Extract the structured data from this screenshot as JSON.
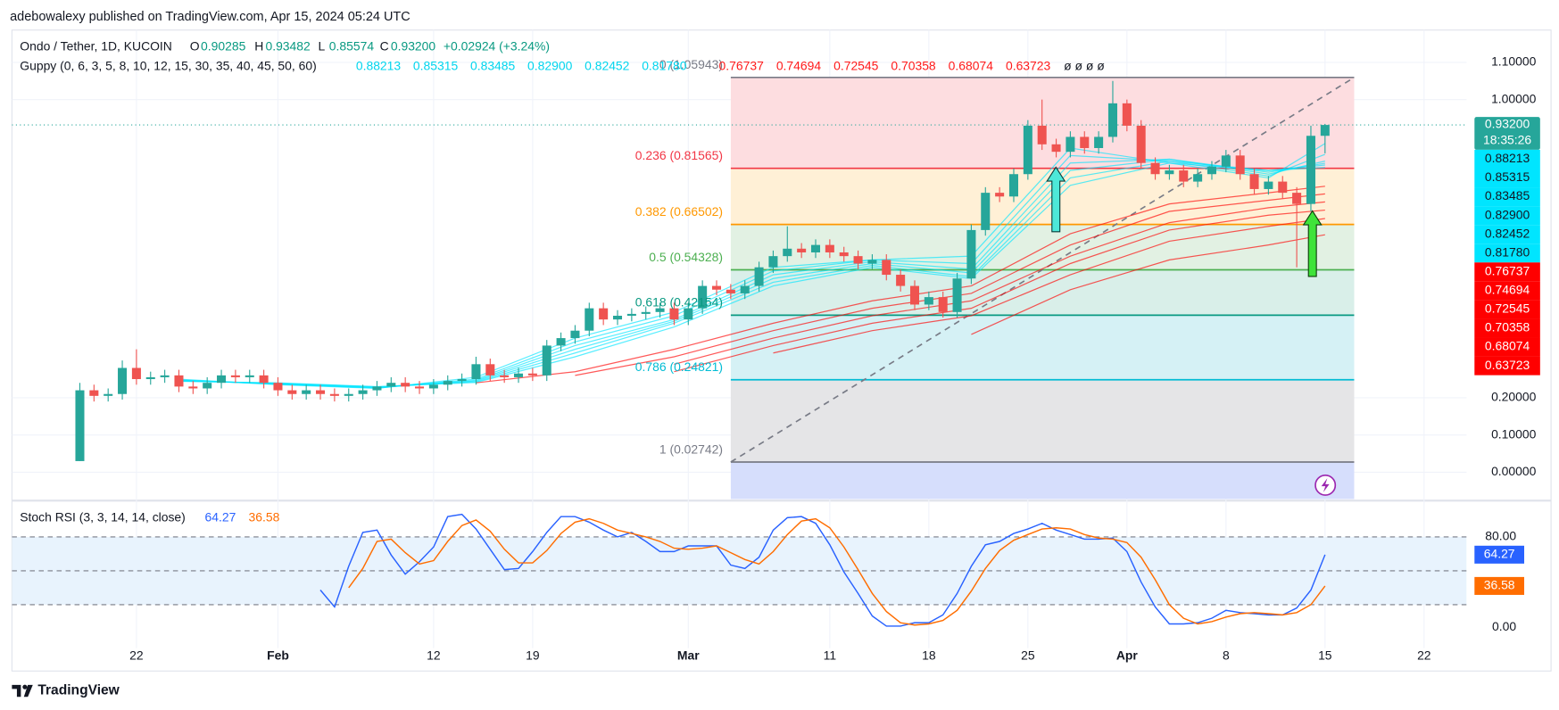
{
  "header": {
    "attribution": "adebowalexy published on TradingView.com, Apr 15, 2024 05:24 UTC",
    "logo": "TradingView"
  },
  "chart_data": [
    {
      "type": "candlestick",
      "title": "Ondo / Tether, 1D, KUCOIN",
      "ohlc_keys": [
        "O",
        "H",
        "L",
        "C"
      ],
      "change": "+0.02924 (+3.24%)",
      "last_price": {
        "value": 0.932,
        "label": "0.93200"
      },
      "countdown": "18:35:26",
      "up_color": "#26a69a",
      "down_color": "#ef5350",
      "open": [
        0.03,
        0.22,
        0.205,
        0.21,
        0.28,
        0.25,
        0.255,
        0.26,
        0.23,
        0.225,
        0.24,
        0.26,
        0.255,
        0.26,
        0.24,
        0.22,
        0.21,
        0.22,
        0.21,
        0.205,
        0.21,
        0.22,
        0.23,
        0.24,
        0.23,
        0.225,
        0.235,
        0.245,
        0.25,
        0.29,
        0.26,
        0.255,
        0.265,
        0.26,
        0.34,
        0.36,
        0.38,
        0.44,
        0.41,
        0.42,
        0.425,
        0.43,
        0.44,
        0.41,
        0.44,
        0.5,
        0.49,
        0.48,
        0.5,
        0.55,
        0.58,
        0.6,
        0.59,
        0.61,
        0.59,
        0.58,
        0.56,
        0.57,
        0.53,
        0.5,
        0.45,
        0.47,
        0.43,
        0.52,
        0.65,
        0.75,
        0.74,
        0.8,
        0.93,
        0.88,
        0.86,
        0.9,
        0.87,
        0.9,
        0.99,
        0.93,
        0.83,
        0.8,
        0.81,
        0.78,
        0.8,
        0.82,
        0.85,
        0.8,
        0.76,
        0.78,
        0.75,
        0.72,
        0.90285
      ],
      "high": [
        0.24,
        0.235,
        0.225,
        0.3,
        0.33,
        0.27,
        0.275,
        0.275,
        0.245,
        0.255,
        0.275,
        0.275,
        0.275,
        0.275,
        0.255,
        0.235,
        0.235,
        0.235,
        0.225,
        0.225,
        0.235,
        0.245,
        0.255,
        0.255,
        0.245,
        0.25,
        0.26,
        0.265,
        0.31,
        0.305,
        0.275,
        0.28,
        0.28,
        0.355,
        0.375,
        0.395,
        0.455,
        0.455,
        0.435,
        0.44,
        0.445,
        0.455,
        0.455,
        0.455,
        0.515,
        0.515,
        0.505,
        0.515,
        0.565,
        0.595,
        0.66,
        0.615,
        0.625,
        0.625,
        0.605,
        0.595,
        0.585,
        0.585,
        0.545,
        0.515,
        0.485,
        0.485,
        0.535,
        0.665,
        0.765,
        0.765,
        0.815,
        0.945,
        1.0,
        0.895,
        0.915,
        0.915,
        0.915,
        1.05,
        1.0,
        0.945,
        0.845,
        0.825,
        0.825,
        0.815,
        0.835,
        0.865,
        0.865,
        0.815,
        0.795,
        0.795,
        0.765,
        0.93,
        0.93482
      ],
      "low": [
        0.03,
        0.19,
        0.19,
        0.195,
        0.235,
        0.235,
        0.24,
        0.215,
        0.21,
        0.21,
        0.225,
        0.24,
        0.24,
        0.225,
        0.205,
        0.195,
        0.195,
        0.195,
        0.19,
        0.19,
        0.195,
        0.205,
        0.215,
        0.215,
        0.21,
        0.21,
        0.22,
        0.23,
        0.235,
        0.245,
        0.24,
        0.24,
        0.245,
        0.245,
        0.325,
        0.345,
        0.365,
        0.395,
        0.395,
        0.405,
        0.41,
        0.415,
        0.395,
        0.395,
        0.425,
        0.475,
        0.465,
        0.465,
        0.485,
        0.535,
        0.565,
        0.575,
        0.575,
        0.575,
        0.565,
        0.545,
        0.545,
        0.515,
        0.485,
        0.435,
        0.435,
        0.415,
        0.415,
        0.505,
        0.635,
        0.725,
        0.725,
        0.785,
        0.865,
        0.845,
        0.845,
        0.855,
        0.855,
        0.885,
        0.915,
        0.815,
        0.785,
        0.785,
        0.765,
        0.765,
        0.785,
        0.805,
        0.785,
        0.745,
        0.745,
        0.735,
        0.55,
        0.7,
        0.85574
      ],
      "close": [
        0.22,
        0.205,
        0.21,
        0.28,
        0.25,
        0.255,
        0.26,
        0.23,
        0.225,
        0.24,
        0.26,
        0.255,
        0.26,
        0.24,
        0.22,
        0.21,
        0.22,
        0.21,
        0.205,
        0.21,
        0.22,
        0.23,
        0.24,
        0.23,
        0.225,
        0.235,
        0.245,
        0.25,
        0.29,
        0.26,
        0.255,
        0.265,
        0.26,
        0.34,
        0.36,
        0.38,
        0.44,
        0.41,
        0.42,
        0.425,
        0.43,
        0.44,
        0.41,
        0.44,
        0.5,
        0.49,
        0.48,
        0.5,
        0.55,
        0.58,
        0.6,
        0.59,
        0.61,
        0.59,
        0.58,
        0.56,
        0.57,
        0.53,
        0.5,
        0.45,
        0.47,
        0.43,
        0.52,
        0.65,
        0.75,
        0.74,
        0.8,
        0.93,
        0.88,
        0.86,
        0.9,
        0.87,
        0.9,
        0.99,
        0.93,
        0.83,
        0.8,
        0.81,
        0.78,
        0.8,
        0.82,
        0.85,
        0.8,
        0.76,
        0.78,
        0.75,
        0.72,
        0.90285,
        0.932
      ],
      "xlim": [
        -4.8,
        98
      ],
      "xticks": [
        {
          "value": 4,
          "label": "22"
        },
        {
          "value": 14,
          "label": "Feb"
        },
        {
          "value": 25,
          "label": "12"
        },
        {
          "value": 32,
          "label": "19"
        },
        {
          "value": 43,
          "label": "Mar"
        },
        {
          "value": 53,
          "label": "11"
        },
        {
          "value": 60,
          "label": "18"
        },
        {
          "value": 67,
          "label": "25"
        },
        {
          "value": 74,
          "label": "Apr"
        },
        {
          "value": 81,
          "label": "8"
        },
        {
          "value": 88,
          "label": "15"
        },
        {
          "value": 95,
          "label": "22"
        }
      ],
      "ylim": [
        -0.072,
        1.1867
      ],
      "yticks": [
        {
          "value": 1.1,
          "label": "1.10000"
        },
        {
          "value": 1,
          "label": "1.00000"
        },
        {
          "value": 0.2,
          "label": "0.20000"
        },
        {
          "value": 0.1,
          "label": "0.10000"
        },
        {
          "value": 0,
          "label": "0.00000"
        }
      ],
      "grid": true,
      "guppy": {
        "title": "Guppy (0, 6, 3, 5, 8, 10, 12, 15, 30, 35, 40, 45, 50, 60)",
        "na_values": "ø ø ø ø",
        "x": [
          0,
          7,
          14,
          21,
          28,
          35,
          42,
          49,
          56,
          63,
          70,
          77,
          84,
          88
        ],
        "series": [
          {
            "color": "#00e5ff",
            "label": "0.88213",
            "values": [
              null,
              0.25,
              0.235,
              0.225,
              0.255,
              0.36,
              0.43,
              0.55,
              0.57,
              0.58,
              0.87,
              0.83,
              0.79,
              0.88213
            ]
          },
          {
            "color": "#00e5ff",
            "label": "0.85315",
            "values": [
              null,
              0.248,
              0.236,
              0.226,
              0.25,
              0.35,
              0.42,
              0.54,
              0.57,
              0.56,
              0.85,
              0.835,
              0.795,
              0.85315
            ]
          },
          {
            "color": "#00e5ff",
            "label": "0.83485",
            "values": [
              null,
              0.247,
              0.237,
              0.227,
              0.247,
              0.34,
              0.41,
              0.53,
              0.565,
              0.545,
              0.83,
              0.84,
              0.8,
              0.83485
            ]
          },
          {
            "color": "#00e5ff",
            "label": "0.82900",
            "values": [
              null,
              0.246,
              0.238,
              0.228,
              0.245,
              0.33,
              0.405,
              0.52,
              0.56,
              0.535,
              0.81,
              0.84,
              0.805,
              0.829
            ]
          },
          {
            "color": "#00e5ff",
            "label": "0.82452",
            "values": [
              null,
              0.245,
              0.239,
              0.229,
              0.243,
              0.32,
              0.4,
              0.51,
              0.555,
              0.525,
              0.79,
              0.835,
              0.81,
              0.82452
            ]
          },
          {
            "color": "#00e5ff",
            "label": "0.81780",
            "values": [
              null,
              0.244,
              0.24,
              0.23,
              0.241,
              0.31,
              0.39,
              0.5,
              0.55,
              0.52,
              0.77,
              0.83,
              0.81,
              0.8178
            ]
          },
          {
            "color": "#ff0000",
            "label": "0.76737",
            "values": [
              null,
              null,
              null,
              null,
              0.24,
              0.27,
              0.33,
              0.4,
              0.46,
              0.5,
              0.64,
              0.72,
              0.75,
              0.76737
            ]
          },
          {
            "color": "#ff0000",
            "label": "0.74694",
            "values": [
              null,
              null,
              null,
              null,
              null,
              0.26,
              0.31,
              0.38,
              0.44,
              0.48,
              0.61,
              0.7,
              0.73,
              0.74694
            ]
          },
          {
            "color": "#ff0000",
            "label": "0.72545",
            "values": [
              null,
              null,
              null,
              null,
              null,
              null,
              0.29,
              0.36,
              0.42,
              0.46,
              0.58,
              0.67,
              0.71,
              0.72545
            ]
          },
          {
            "color": "#ff0000",
            "label": "0.70358",
            "values": [
              null,
              null,
              null,
              null,
              null,
              null,
              0.27,
              0.34,
              0.4,
              0.44,
              0.56,
              0.65,
              0.69,
              0.70358
            ]
          },
          {
            "color": "#ff0000",
            "label": "0.68074",
            "values": [
              null,
              null,
              null,
              null,
              null,
              null,
              null,
              0.32,
              0.38,
              0.42,
              0.53,
              0.62,
              0.66,
              0.68074
            ]
          },
          {
            "color": "#ff0000",
            "label": "0.63723",
            "values": [
              null,
              null,
              null,
              null,
              null,
              null,
              null,
              null,
              null,
              0.37,
              0.49,
              0.57,
              0.61,
              0.63723
            ]
          }
        ]
      },
      "fib": {
        "levels": [
          {
            "label": "0 (1.05943)",
            "value": 1.05943,
            "color": "#787b86",
            "fill": "#fde0e2"
          },
          {
            "label": "0.236 (0.81565)",
            "value": 0.81565,
            "color": "#f23645",
            "fill": "#fddde0"
          },
          {
            "label": "0.382 (0.66502)",
            "value": 0.66502,
            "color": "#ff9800",
            "fill": "#fff0d6"
          },
          {
            "label": "0.5 (0.54328)",
            "value": 0.54328,
            "color": "#4caf50",
            "fill": "#e2f1e3"
          },
          {
            "label": "0.618 (0.42154)",
            "value": 0.42154,
            "color": "#089981",
            "fill": "#d9efe9"
          },
          {
            "label": "0.786 (0.24821)",
            "value": 0.24821,
            "color": "#00bcd4",
            "fill": "#d5f1f5"
          },
          {
            "label": "1 (0.02742)",
            "value": 0.02742,
            "color": "#787b86",
            "fill": "#e5e5e7"
          }
        ]
      }
    },
    {
      "type": "line",
      "title": "Stoch RSI (3, 3, 14, 14, close)",
      "ylim": [
        -18.5,
        110.8
      ],
      "yticks": [
        {
          "value": 80,
          "label": "80.00"
        },
        {
          "value": 0,
          "label": "0.00"
        }
      ],
      "band": [
        20,
        80
      ],
      "levels": [
        80,
        50,
        20
      ],
      "series": [
        {
          "color": "#2962ff",
          "values": [
            null,
            null,
            null,
            null,
            null,
            null,
            null,
            null,
            null,
            null,
            null,
            null,
            null,
            null,
            null,
            null,
            null,
            33,
            18,
            54,
            84,
            86,
            64,
            47,
            58,
            71,
            98,
            100,
            87,
            69,
            51,
            52,
            67,
            84,
            98,
            98,
            93,
            86,
            80,
            84,
            76,
            67,
            67,
            72,
            72,
            72,
            55,
            52,
            62,
            86,
            97,
            98,
            92,
            73,
            49,
            30,
            10,
            1,
            1,
            4,
            4,
            11,
            30,
            54,
            73,
            76,
            83,
            87,
            92,
            86,
            82,
            78,
            78,
            79,
            67,
            40,
            18,
            3,
            3,
            4,
            8,
            15,
            13,
            12,
            11,
            11,
            17,
            33,
            64.27
          ]
        },
        {
          "color": "#ff6d00",
          "values": [
            null,
            null,
            null,
            null,
            null,
            null,
            null,
            null,
            null,
            null,
            null,
            null,
            null,
            null,
            null,
            null,
            null,
            null,
            null,
            35,
            52,
            76,
            78,
            66,
            56,
            59,
            76,
            90,
            95,
            85,
            69,
            57,
            57,
            68,
            83,
            93,
            96,
            92,
            86,
            83,
            80,
            76,
            70,
            69,
            70,
            72,
            66,
            60,
            56,
            67,
            82,
            94,
            96,
            88,
            71,
            51,
            30,
            14,
            4,
            2,
            3,
            6,
            15,
            32,
            52,
            68,
            77,
            82,
            87,
            88,
            87,
            82,
            79,
            78,
            75,
            62,
            42,
            20,
            8,
            3,
            5,
            9,
            12,
            13,
            12,
            11,
            13,
            20,
            36.58
          ]
        }
      ]
    }
  ]
}
